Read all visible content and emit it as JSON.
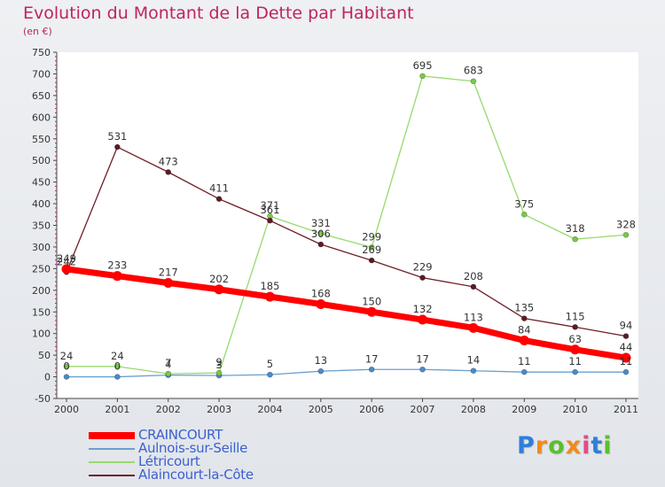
{
  "chart_data": {
    "type": "line",
    "title": "Evolution du Montant de la Dette par Habitant",
    "unit_label": "(en €)",
    "xlabel": "",
    "ylabel": "",
    "x": [
      "2000",
      "2001",
      "2002",
      "2003",
      "2004",
      "2005",
      "2006",
      "2007",
      "2008",
      "2009",
      "2010",
      "2011"
    ],
    "ylim": [
      -50,
      750
    ],
    "yticks": [
      -50,
      0,
      50,
      100,
      150,
      200,
      250,
      300,
      350,
      400,
      450,
      500,
      550,
      600,
      650,
      700,
      750
    ],
    "ytick_labels": [
      "-50",
      "0",
      "50",
      "100",
      "150",
      "200",
      "250",
      "300",
      "350",
      "400",
      "450",
      "500",
      "550",
      "600",
      "650",
      "700",
      "750"
    ],
    "series": [
      {
        "name": "Aulnois-sur-Seille",
        "color": "#6a9fcf",
        "point_color": "#4a8bc8",
        "values": [
          0,
          0,
          4,
          3,
          5,
          13,
          17,
          17,
          14,
          11,
          11,
          11
        ],
        "labels": [
          "0",
          "0",
          "4",
          "3",
          "5",
          "13",
          "17",
          "17",
          "14",
          "11",
          "11",
          "11"
        ]
      },
      {
        "name": "Létricourt",
        "color": "#98d96c",
        "point_color": "#7cc846",
        "values": [
          24,
          24,
          7,
          9,
          371,
          331,
          299,
          695,
          683,
          375,
          318,
          328
        ],
        "labels": [
          "24",
          "24",
          "7",
          "9",
          "371",
          "331",
          "299",
          "695",
          "683",
          "375",
          "318",
          "328"
        ]
      },
      {
        "name": "Alaincourt-la-Côte",
        "color": "#6e1f28",
        "point_color": "#5c1a22",
        "values": [
          242,
          531,
          473,
          411,
          361,
          306,
          269,
          229,
          208,
          135,
          115,
          94
        ],
        "labels": [
          "242",
          "531",
          "473",
          "411",
          "361",
          "306",
          "269",
          "229",
          "208",
          "135",
          "115",
          "94"
        ]
      },
      {
        "name": "CRAINCOURT",
        "color": "#ff0000",
        "point_color": "#ff0000",
        "values": [
          249,
          233,
          217,
          202,
          185,
          168,
          150,
          132,
          113,
          84,
          63,
          44
        ],
        "labels": [
          "249",
          "233",
          "217",
          "202",
          "185",
          "168",
          "150",
          "132",
          "113",
          "84",
          "63",
          "44"
        ]
      }
    ],
    "legend": [
      {
        "name": "CRAINCOURT",
        "color": "#ff0000"
      },
      {
        "name": "Aulnois-sur-Seille",
        "color": "#6a9fcf"
      },
      {
        "name": "Létricourt",
        "color": "#98d96c"
      },
      {
        "name": "Alaincourt-la-Côte",
        "color": "#6e1f28"
      }
    ],
    "legend_position": "bottom-left",
    "grid": false
  },
  "logo": {
    "letters": [
      "P",
      "r",
      "o",
      "x",
      "i",
      "t",
      "i"
    ],
    "colors": [
      "#2f7fd8",
      "#f18a1c",
      "#5bbf2e",
      "#f18a1c",
      "#e84a8a",
      "#2f7fd8",
      "#5bbf2e"
    ]
  }
}
